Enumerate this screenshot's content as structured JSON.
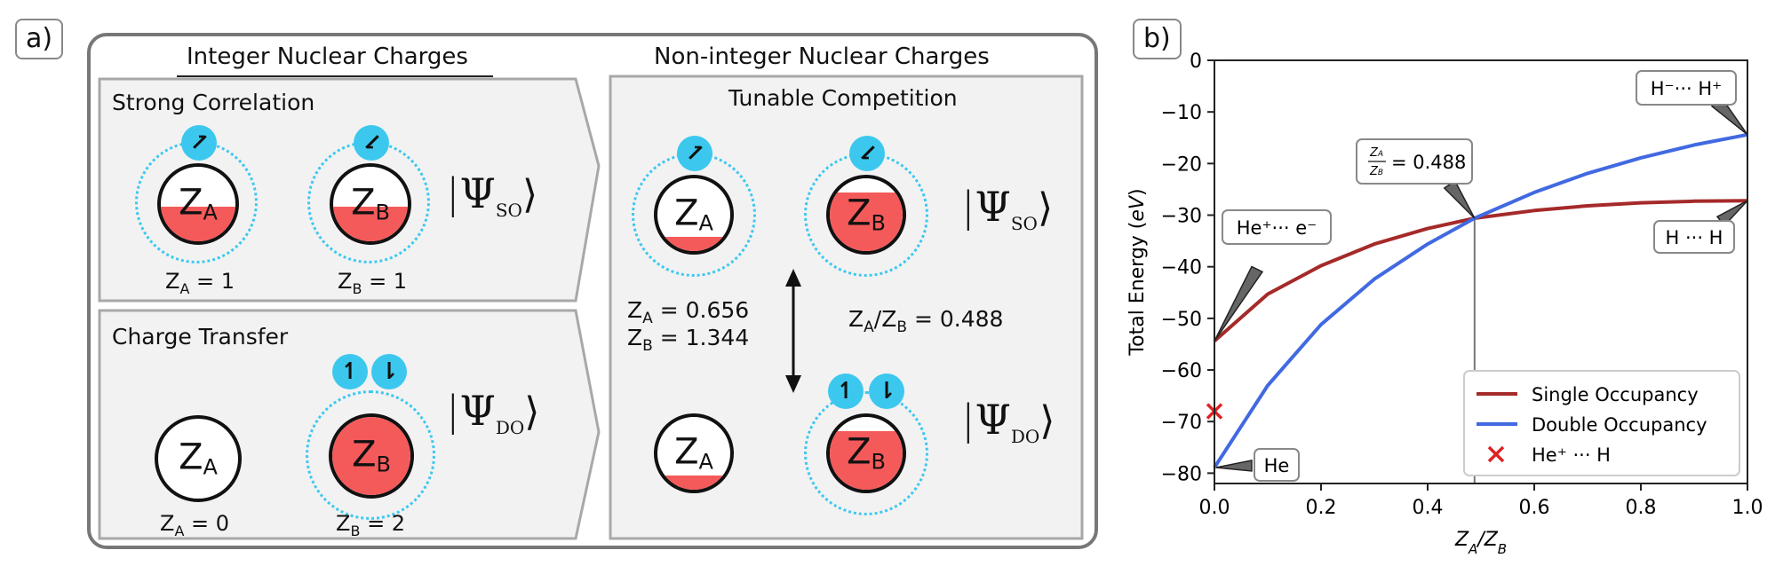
{
  "panel_a": {
    "label": "a)",
    "header_integer": "Integer Nuclear Charges",
    "header_noninteger": "Non-integer  Nuclear Charges",
    "strong_correlation": {
      "title": "Strong Correlation",
      "za_label": "Z",
      "za_sub": "A",
      "za_eq": " = 1",
      "zb_label": "Z",
      "zb_sub": "B",
      "zb_eq": " = 1",
      "ket_sub": "SO"
    },
    "charge_transfer": {
      "title": "Charge Transfer",
      "za_label": "Z",
      "za_sub": "A",
      "za_eq": " = 0",
      "zb_label": "Z",
      "zb_sub": "B",
      "zb_eq": " = 2",
      "ket_sub": "DO"
    },
    "tunable": {
      "title": "Tunable Competition",
      "za_line": " = 0.656",
      "zb_line": " = 1.344",
      "ratio_line": " = 0.488",
      "ket_so": "SO",
      "ket_do": "DO"
    },
    "symbols": {
      "Z": "Z",
      "A": "A",
      "B": "B",
      "Psi": "Ψ",
      "up": "↿",
      "down": "⇂",
      "bar": "|",
      "ang": "⟩"
    }
  },
  "panel_b": {
    "label": "b)"
  },
  "chart_data": {
    "type": "line",
    "xlabel": "Z_A/Z_B",
    "ylabel": "Total Energy (eV)",
    "xlim": [
      0.0,
      1.0
    ],
    "ylim": [
      -82,
      0
    ],
    "xticks": [
      0.0,
      0.2,
      0.4,
      0.6,
      0.8,
      1.0
    ],
    "yticks": [
      0,
      -10,
      -20,
      -30,
      -40,
      -50,
      -60,
      -70,
      -80
    ],
    "grid": false,
    "legend_position": "lower-right",
    "series": [
      {
        "name": "Single Occupancy",
        "color": "#a52a2a",
        "x": [
          0.0,
          0.1,
          0.2,
          0.3,
          0.4,
          0.488,
          0.6,
          0.7,
          0.8,
          0.9,
          1.0
        ],
        "y": [
          -54.4,
          -45.3,
          -39.8,
          -35.6,
          -32.6,
          -30.6,
          -29.1,
          -28.2,
          -27.6,
          -27.3,
          -27.2
        ]
      },
      {
        "name": "Double Occupancy",
        "color": "#4169e1",
        "x": [
          0.0,
          0.1,
          0.2,
          0.3,
          0.4,
          0.488,
          0.6,
          0.7,
          0.8,
          0.9,
          1.0
        ],
        "y": [
          -78.9,
          -63.0,
          -51.2,
          -42.4,
          -35.6,
          -30.6,
          -25.6,
          -21.9,
          -18.9,
          -16.4,
          -14.4
        ]
      },
      {
        "name": "He⁺ ··· H",
        "type": "scatter",
        "marker": "x",
        "color": "#dd2222",
        "x": [
          0.0
        ],
        "y": [
          -68.0
        ]
      }
    ],
    "crossing": {
      "x": 0.488,
      "y": -30.6
    },
    "annotations": [
      {
        "text": "H⁻··· H⁺",
        "x": 1.0,
        "y": -14.4
      },
      {
        "text": "= 0.488",
        "x": 0.488,
        "y": -30.6
      },
      {
        "text": "He⁺··· e⁻",
        "x": 0.0,
        "y": -54.4
      },
      {
        "text": "H ··· H",
        "x": 1.0,
        "y": -27.2
      },
      {
        "text": "He",
        "x": 0.0,
        "y": -78.9
      }
    ]
  }
}
